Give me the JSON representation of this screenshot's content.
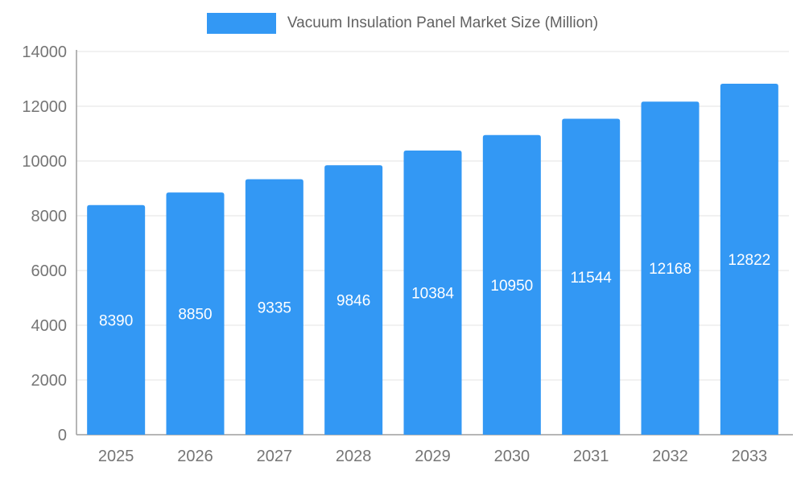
{
  "chart_data": {
    "type": "bar",
    "title": "Vacuum Insulation Panel Market Size (Million)",
    "categories": [
      "2025",
      "2026",
      "2027",
      "2028",
      "2029",
      "2030",
      "2031",
      "2032",
      "2033"
    ],
    "values": [
      8390,
      8850,
      9335,
      9846,
      10384,
      10950,
      11544,
      12168,
      12822
    ],
    "xlabel": "",
    "ylabel": "",
    "ylim": [
      0,
      14000
    ],
    "ytick_step": 2000,
    "grid": true,
    "legend_position": "top",
    "colors": {
      "bar": "#3398f4",
      "grid": "#e3e3e3",
      "axis": "#9e9e9e",
      "tick_text": "#757575",
      "title_text": "#616161",
      "bar_label": "#ffffff"
    }
  }
}
